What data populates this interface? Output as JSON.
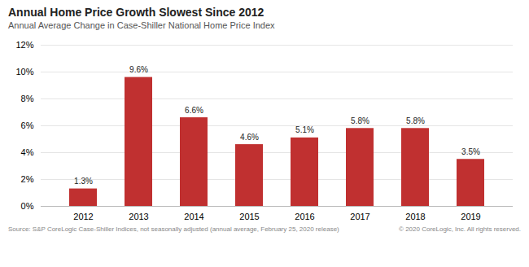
{
  "chart_data": {
    "type": "bar",
    "title": "Annual Home Price Growth Slowest Since 2012",
    "subtitle": "Annual Average Change in Case-Shiller National Home Price Index",
    "annotations": [
      "Source:  S&P CoreLogic Case-Shiller Indices, not seasonally adjusted (annual average, February 25, 2020 release)",
      "© 2020 CoreLogic, Inc. All rights reserved."
    ],
    "categories": [
      "2012",
      "2013",
      "2014",
      "2015",
      "2016",
      "2017",
      "2018",
      "2019"
    ],
    "values": [
      1.3,
      9.6,
      6.6,
      4.6,
      5.1,
      5.8,
      5.8,
      3.5
    ],
    "value_labels": [
      "1.3%",
      "9.6%",
      "6.6%",
      "4.6%",
      "5.1%",
      "5.8%",
      "5.8%",
      "3.5%"
    ],
    "data_labels": true,
    "color": "#C03030",
    "ylim": [
      0,
      12
    ],
    "yticks": [
      {
        "value": 0,
        "label": "0%"
      },
      {
        "value": 2,
        "label": "2%"
      },
      {
        "value": 4,
        "label": "4%"
      },
      {
        "value": 6,
        "label": "6%"
      },
      {
        "value": 8,
        "label": "8%"
      },
      {
        "value": 10,
        "label": "10%"
      },
      {
        "value": 12,
        "label": "12%"
      }
    ],
    "grid": true
  }
}
